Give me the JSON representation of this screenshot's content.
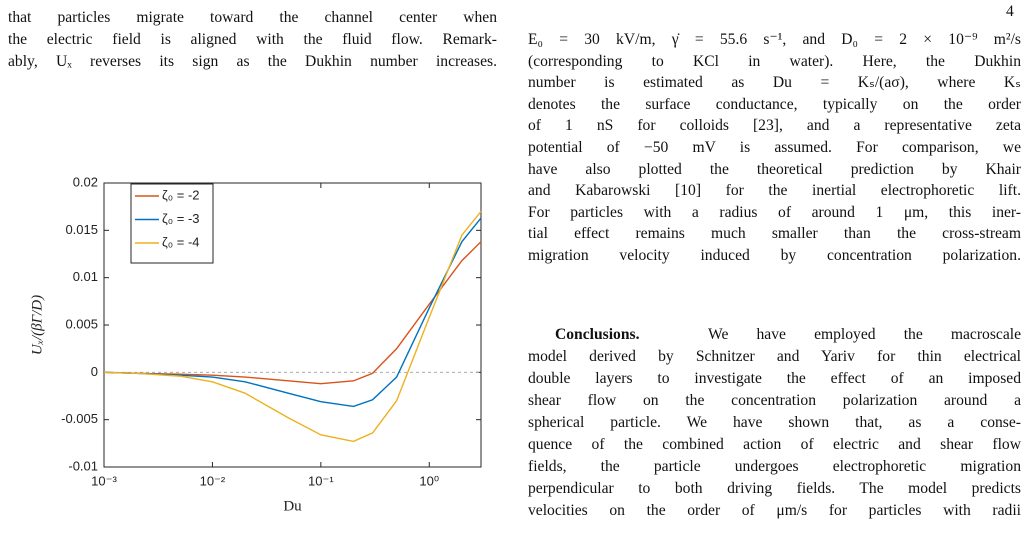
{
  "page_number": "4",
  "left_column": {
    "lines": [
      "that particles migrate toward the channel center when",
      "the electric field is aligned with the fluid flow. Remark-",
      "ably, Uₓ reverses its sign as the Dukhin number increases."
    ]
  },
  "chart_data": {
    "type": "line",
    "x_label": "Du",
    "y_label": "Uₓ/(βΓ/D)",
    "x": [
      0.001,
      0.002,
      0.005,
      0.01,
      0.02,
      0.05,
      0.1,
      0.2,
      0.3,
      0.5,
      1,
      2,
      3
    ],
    "series": [
      {
        "name": "ζ₀ = -2",
        "color": "#d95319",
        "values": [
          0,
          -0.0001,
          -0.0002,
          -0.0003,
          -0.0005,
          -0.0009,
          -0.0012,
          -0.0009,
          -0.0001,
          0.0025,
          0.0072,
          0.0118,
          0.0138
        ]
      },
      {
        "name": "ζ₀ = -3",
        "color": "#0072bd",
        "values": [
          0,
          -0.0001,
          -0.0003,
          -0.0005,
          -0.001,
          -0.0022,
          -0.0031,
          -0.0036,
          -0.0029,
          -0.0005,
          0.0068,
          0.0138,
          0.0163
        ]
      },
      {
        "name": "ζ₀ = -4",
        "color": "#edb120",
        "values": [
          0,
          -0.0001,
          -0.0004,
          -0.001,
          -0.0022,
          -0.0048,
          -0.0066,
          -0.0073,
          -0.0064,
          -0.003,
          0.0058,
          0.0145,
          0.017
        ]
      }
    ],
    "xscale": "log",
    "xlim": [
      0.001,
      3
    ],
    "ylim": [
      -0.01,
      0.02
    ],
    "xticks": [
      {
        "value": 0.001,
        "label": "10⁻³"
      },
      {
        "value": 0.01,
        "label": "10⁻²"
      },
      {
        "value": 0.1,
        "label": "10⁻¹"
      },
      {
        "value": 1,
        "label": "10⁰"
      }
    ],
    "yticks": [
      -0.01,
      -0.005,
      0,
      0.005,
      0.01,
      0.015,
      0.02
    ],
    "hline": 0,
    "legend": "upper-left"
  },
  "right_column": {
    "paragraphs": [
      {
        "lines": [
          "E₀ = 30 kV/m, γ̇ = 55.6 s⁻¹, and D₀ = 2 × 10⁻⁹ m²/s",
          "(corresponding to KCl in water). Here, the Dukhin",
          "number is estimated as Du = Kₛ/(aσ), where Kₛ",
          "denotes the surface conductance, typically on the order",
          "of 1 nS for colloids [23], and a representative zeta",
          "potential of −50 mV is assumed. For comparison, we",
          "have also plotted the theoretical prediction by Khair",
          "and Kabarowski [10] for the inertial electrophoretic lift.",
          "For particles with a radius of around 1 μm, this iner-",
          "tial effect remains much smaller than the cross-stream",
          "migration velocity induced by concentration polarization."
        ]
      },
      {
        "heading": "Conclusions.",
        "lines": [
          "We have employed the macroscale",
          "model derived by Schnitzer and Yariv for thin electrical",
          "double layers to investigate the effect of an imposed",
          "shear flow on the concentration polarization around a",
          "spherical particle. We have shown that, as a conse-",
          "quence of the combined action of electric and shear flow",
          "fields, the particle undergoes electrophoretic migration",
          "perpendicular to both driving fields. The model predicts",
          "velocities on the order of μm/s for particles with radii"
        ]
      }
    ]
  }
}
